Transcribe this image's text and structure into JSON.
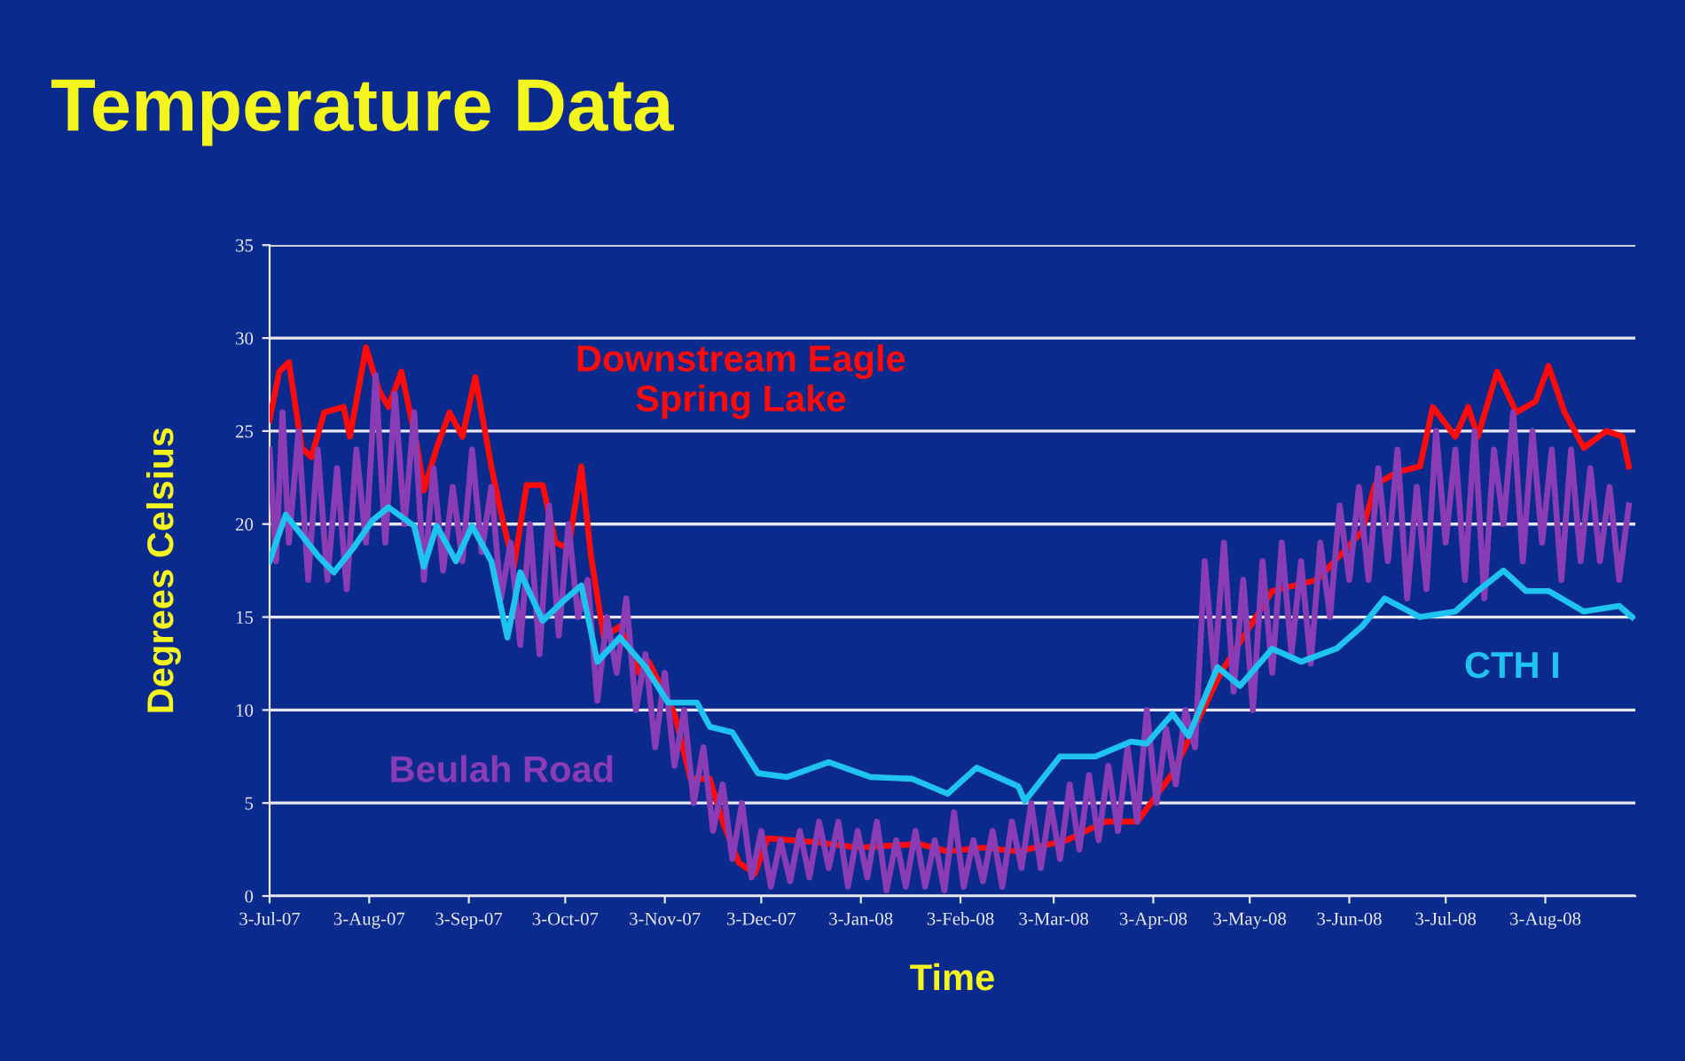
{
  "chart_data": {
    "type": "line",
    "title": "Temperature Data",
    "xlabel": "Time",
    "ylabel": "Degrees Celsius",
    "ylim": [
      0,
      35
    ],
    "yticks": [
      0,
      5,
      10,
      15,
      20,
      25,
      30,
      35
    ],
    "xlim": [
      "2007-07-03",
      "2008-08-31"
    ],
    "xticks": [
      {
        "value": "2007-07-03",
        "label": "3-Jul-07"
      },
      {
        "value": "2007-08-03",
        "label": "3-Aug-07"
      },
      {
        "value": "2007-09-03",
        "label": "3-Sep-07"
      },
      {
        "value": "2007-10-03",
        "label": "3-Oct-07"
      },
      {
        "value": "2007-11-03",
        "label": "3-Nov-07"
      },
      {
        "value": "2007-12-03",
        "label": "3-Dec-07"
      },
      {
        "value": "2008-01-03",
        "label": "3-Jan-08"
      },
      {
        "value": "2008-02-03",
        "label": "3-Feb-08"
      },
      {
        "value": "2008-03-03",
        "label": "3-Mar-08"
      },
      {
        "value": "2008-04-03",
        "label": "3-Apr-08"
      },
      {
        "value": "2008-05-03",
        "label": "3-May-08"
      },
      {
        "value": "2008-06-03",
        "label": "3-Jun-08"
      },
      {
        "value": "2008-07-03",
        "label": "3-Jul-08"
      },
      {
        "value": "2008-08-03",
        "label": "3-Aug-08"
      }
    ],
    "grid": "y",
    "line_style": "solid",
    "marker": "none",
    "series": [
      {
        "name": "Downstream Eagle\nSpring Lake",
        "color": "#ff0a0a",
        "x": [
          "2007-07-03",
          "2007-07-06",
          "2007-07-09",
          "2007-07-13",
          "2007-07-16",
          "2007-07-20",
          "2007-07-26",
          "2007-07-28",
          "2007-08-02",
          "2007-08-06",
          "2007-08-09",
          "2007-08-13",
          "2007-08-18",
          "2007-08-20",
          "2007-08-24",
          "2007-08-28",
          "2007-09-01",
          "2007-09-05",
          "2007-09-10",
          "2007-09-13",
          "2007-09-17",
          "2007-09-21",
          "2007-09-26",
          "2007-09-30",
          "2007-10-04",
          "2007-10-08",
          "2007-10-11",
          "2007-10-15",
          "2007-10-20",
          "2007-10-26",
          "2007-10-29",
          "2007-11-06",
          "2007-11-11",
          "2007-11-17",
          "2007-11-21",
          "2007-11-26",
          "2007-12-01",
          "2007-12-05",
          "2007-12-20",
          "2008-01-02",
          "2008-01-21",
          "2008-01-30",
          "2008-02-10",
          "2008-02-21",
          "2008-03-07",
          "2008-03-19",
          "2008-03-29",
          "2008-04-09",
          "2008-04-24",
          "2008-05-10",
          "2008-05-24",
          "2008-06-07",
          "2008-06-11",
          "2008-06-18",
          "2008-06-25",
          "2008-06-29",
          "2008-07-06",
          "2008-07-10",
          "2008-07-13",
          "2008-07-19",
          "2008-07-25",
          "2008-07-31",
          "2008-08-04",
          "2008-08-09",
          "2008-08-15",
          "2008-08-22",
          "2008-08-27",
          "2008-08-29"
        ],
        "values": [
          25.6,
          28.2,
          28.7,
          24.1,
          23.6,
          26.0,
          26.3,
          24.7,
          29.5,
          27.2,
          26.3,
          28.2,
          24.1,
          21.8,
          24.1,
          26.0,
          24.7,
          27.9,
          23.1,
          20.6,
          17.7,
          22.1,
          22.1,
          19.0,
          18.7,
          23.1,
          18.3,
          13.9,
          14.5,
          12.0,
          12.6,
          9.8,
          6.3,
          6.3,
          4.0,
          1.8,
          1.2,
          3.1,
          2.9,
          2.6,
          2.8,
          2.4,
          2.6,
          2.4,
          3.0,
          4.0,
          4.0,
          6.6,
          12.0,
          16.4,
          17.0,
          19.6,
          22.1,
          22.8,
          23.1,
          26.3,
          24.7,
          26.3,
          24.7,
          28.2,
          26.0,
          26.6,
          28.5,
          26.0,
          24.1,
          25.0,
          24.7,
          23.1
        ]
      },
      {
        "name": "Beulah Road",
        "color": "#8a3cb4",
        "x": [
          "2007-07-03",
          "2007-07-05",
          "2007-07-07",
          "2007-07-09",
          "2007-07-12",
          "2007-07-15",
          "2007-07-18",
          "2007-07-21",
          "2007-07-24",
          "2007-07-27",
          "2007-07-30",
          "2007-08-02",
          "2007-08-05",
          "2007-08-08",
          "2007-08-11",
          "2007-08-14",
          "2007-08-17",
          "2007-08-20",
          "2007-08-23",
          "2007-08-26",
          "2007-08-29",
          "2007-09-01",
          "2007-09-04",
          "2007-09-07",
          "2007-09-10",
          "2007-09-13",
          "2007-09-16",
          "2007-09-19",
          "2007-09-22",
          "2007-09-25",
          "2007-09-28",
          "2007-10-01",
          "2007-10-04",
          "2007-10-07",
          "2007-10-10",
          "2007-10-13",
          "2007-10-16",
          "2007-10-19",
          "2007-10-22",
          "2007-10-25",
          "2007-10-28",
          "2007-10-31",
          "2007-11-03",
          "2007-11-06",
          "2007-11-09",
          "2007-11-12",
          "2007-11-15",
          "2007-11-18",
          "2007-11-21",
          "2007-11-24",
          "2007-11-27",
          "2007-11-30",
          "2007-12-03",
          "2007-12-06",
          "2007-12-09",
          "2007-12-12",
          "2007-12-15",
          "2007-12-18",
          "2007-12-21",
          "2007-12-24",
          "2007-12-27",
          "2007-12-30",
          "2008-01-02",
          "2008-01-05",
          "2008-01-08",
          "2008-01-11",
          "2008-01-14",
          "2008-01-17",
          "2008-01-20",
          "2008-01-23",
          "2008-01-26",
          "2008-01-29",
          "2008-02-01",
          "2008-02-04",
          "2008-02-07",
          "2008-02-10",
          "2008-02-13",
          "2008-02-16",
          "2008-02-19",
          "2008-02-22",
          "2008-02-25",
          "2008-02-28",
          "2008-03-02",
          "2008-03-05",
          "2008-03-08",
          "2008-03-11",
          "2008-03-14",
          "2008-03-17",
          "2008-03-20",
          "2008-03-23",
          "2008-03-26",
          "2008-03-29",
          "2008-04-01",
          "2008-04-04",
          "2008-04-07",
          "2008-04-10",
          "2008-04-13",
          "2008-04-16",
          "2008-04-19",
          "2008-04-22",
          "2008-04-25",
          "2008-04-28",
          "2008-05-01",
          "2008-05-04",
          "2008-05-07",
          "2008-05-10",
          "2008-05-13",
          "2008-05-16",
          "2008-05-19",
          "2008-05-22",
          "2008-05-25",
          "2008-05-28",
          "2008-05-31",
          "2008-06-03",
          "2008-06-06",
          "2008-06-09",
          "2008-06-12",
          "2008-06-15",
          "2008-06-18",
          "2008-06-21",
          "2008-06-24",
          "2008-06-27",
          "2008-06-30",
          "2008-07-03",
          "2008-07-06",
          "2008-07-09",
          "2008-07-12",
          "2008-07-15",
          "2008-07-18",
          "2008-07-21",
          "2008-07-24",
          "2008-07-27",
          "2008-07-30",
          "2008-08-02",
          "2008-08-05",
          "2008-08-08",
          "2008-08-11",
          "2008-08-14",
          "2008-08-17",
          "2008-08-20",
          "2008-08-23",
          "2008-08-26",
          "2008-08-29"
        ],
        "values": [
          24,
          18,
          26,
          19,
          25,
          17,
          24,
          17,
          23,
          16.5,
          24,
          19,
          28,
          19,
          27,
          20,
          26,
          17,
          23,
          17.5,
          22,
          18,
          24,
          18.5,
          22,
          16,
          19,
          13.5,
          20,
          13,
          21,
          14,
          20,
          15,
          17,
          10.5,
          15,
          12,
          16,
          10,
          13,
          8,
          12,
          7,
          10,
          5,
          8,
          3.5,
          6,
          2,
          5,
          1,
          3.5,
          0.5,
          3,
          0.8,
          3.5,
          1,
          4,
          1.5,
          4,
          0.5,
          3.5,
          1,
          4,
          0.3,
          3,
          0.5,
          3.5,
          0.5,
          3,
          0.3,
          4.5,
          0.5,
          3,
          0.8,
          3.5,
          0.5,
          4,
          1.5,
          5,
          1.5,
          5,
          2,
          6,
          2.5,
          6.5,
          3,
          7,
          3.5,
          8,
          4,
          10,
          5,
          9,
          6,
          10,
          8,
          18,
          12,
          19,
          11,
          17,
          10,
          18,
          12,
          19,
          13,
          18,
          12.5,
          19,
          15,
          21,
          17,
          22,
          17,
          23,
          18,
          24,
          16,
          22,
          16.5,
          25,
          19,
          24,
          17,
          25,
          16,
          24,
          20,
          26,
          18,
          25,
          19,
          24,
          17,
          24,
          18,
          23,
          18,
          22,
          17,
          21
        ]
      },
      {
        "name": "CTH I",
        "color": "#1ec3f0",
        "x": [
          "2007-07-03",
          "2007-07-08",
          "2007-07-18",
          "2007-07-23",
          "2007-07-29",
          "2007-08-04",
          "2007-08-09",
          "2007-08-17",
          "2007-08-20",
          "2007-08-24",
          "2007-08-30",
          "2007-09-04",
          "2007-09-10",
          "2007-09-15",
          "2007-09-19",
          "2007-09-26",
          "2007-10-02",
          "2007-10-08",
          "2007-10-13",
          "2007-10-20",
          "2007-10-28",
          "2007-11-04",
          "2007-11-13",
          "2007-11-17",
          "2007-11-24",
          "2007-12-02",
          "2007-12-11",
          "2007-12-24",
          "2008-01-06",
          "2008-01-19",
          "2008-01-30",
          "2008-02-08",
          "2008-02-21",
          "2008-02-23",
          "2008-03-05",
          "2008-03-16",
          "2008-03-27",
          "2008-04-01",
          "2008-04-09",
          "2008-04-14",
          "2008-04-23",
          "2008-04-30",
          "2008-05-10",
          "2008-05-19",
          "2008-05-30",
          "2008-06-07",
          "2008-06-14",
          "2008-06-25",
          "2008-07-06",
          "2008-07-13",
          "2008-07-21",
          "2008-07-28",
          "2008-08-04",
          "2008-08-15",
          "2008-08-26",
          "2008-08-30"
        ],
        "values": [
          18,
          20.5,
          18.3,
          17.4,
          18.7,
          20.2,
          20.9,
          19.9,
          17.7,
          19.9,
          18.0,
          19.9,
          18.0,
          13.9,
          17.4,
          14.8,
          15.8,
          16.7,
          12.6,
          13.9,
          12.3,
          10.4,
          10.4,
          9.1,
          8.8,
          6.6,
          6.4,
          7.2,
          6.4,
          6.3,
          5.5,
          6.9,
          5.9,
          5.1,
          7.5,
          7.5,
          8.3,
          8.2,
          9.8,
          8.6,
          12.3,
          11.3,
          13.3,
          12.6,
          13.3,
          14.5,
          16.0,
          15.0,
          15.3,
          16.4,
          17.5,
          16.4,
          16.4,
          15.3,
          15.6,
          15.0
        ]
      }
    ]
  }
}
